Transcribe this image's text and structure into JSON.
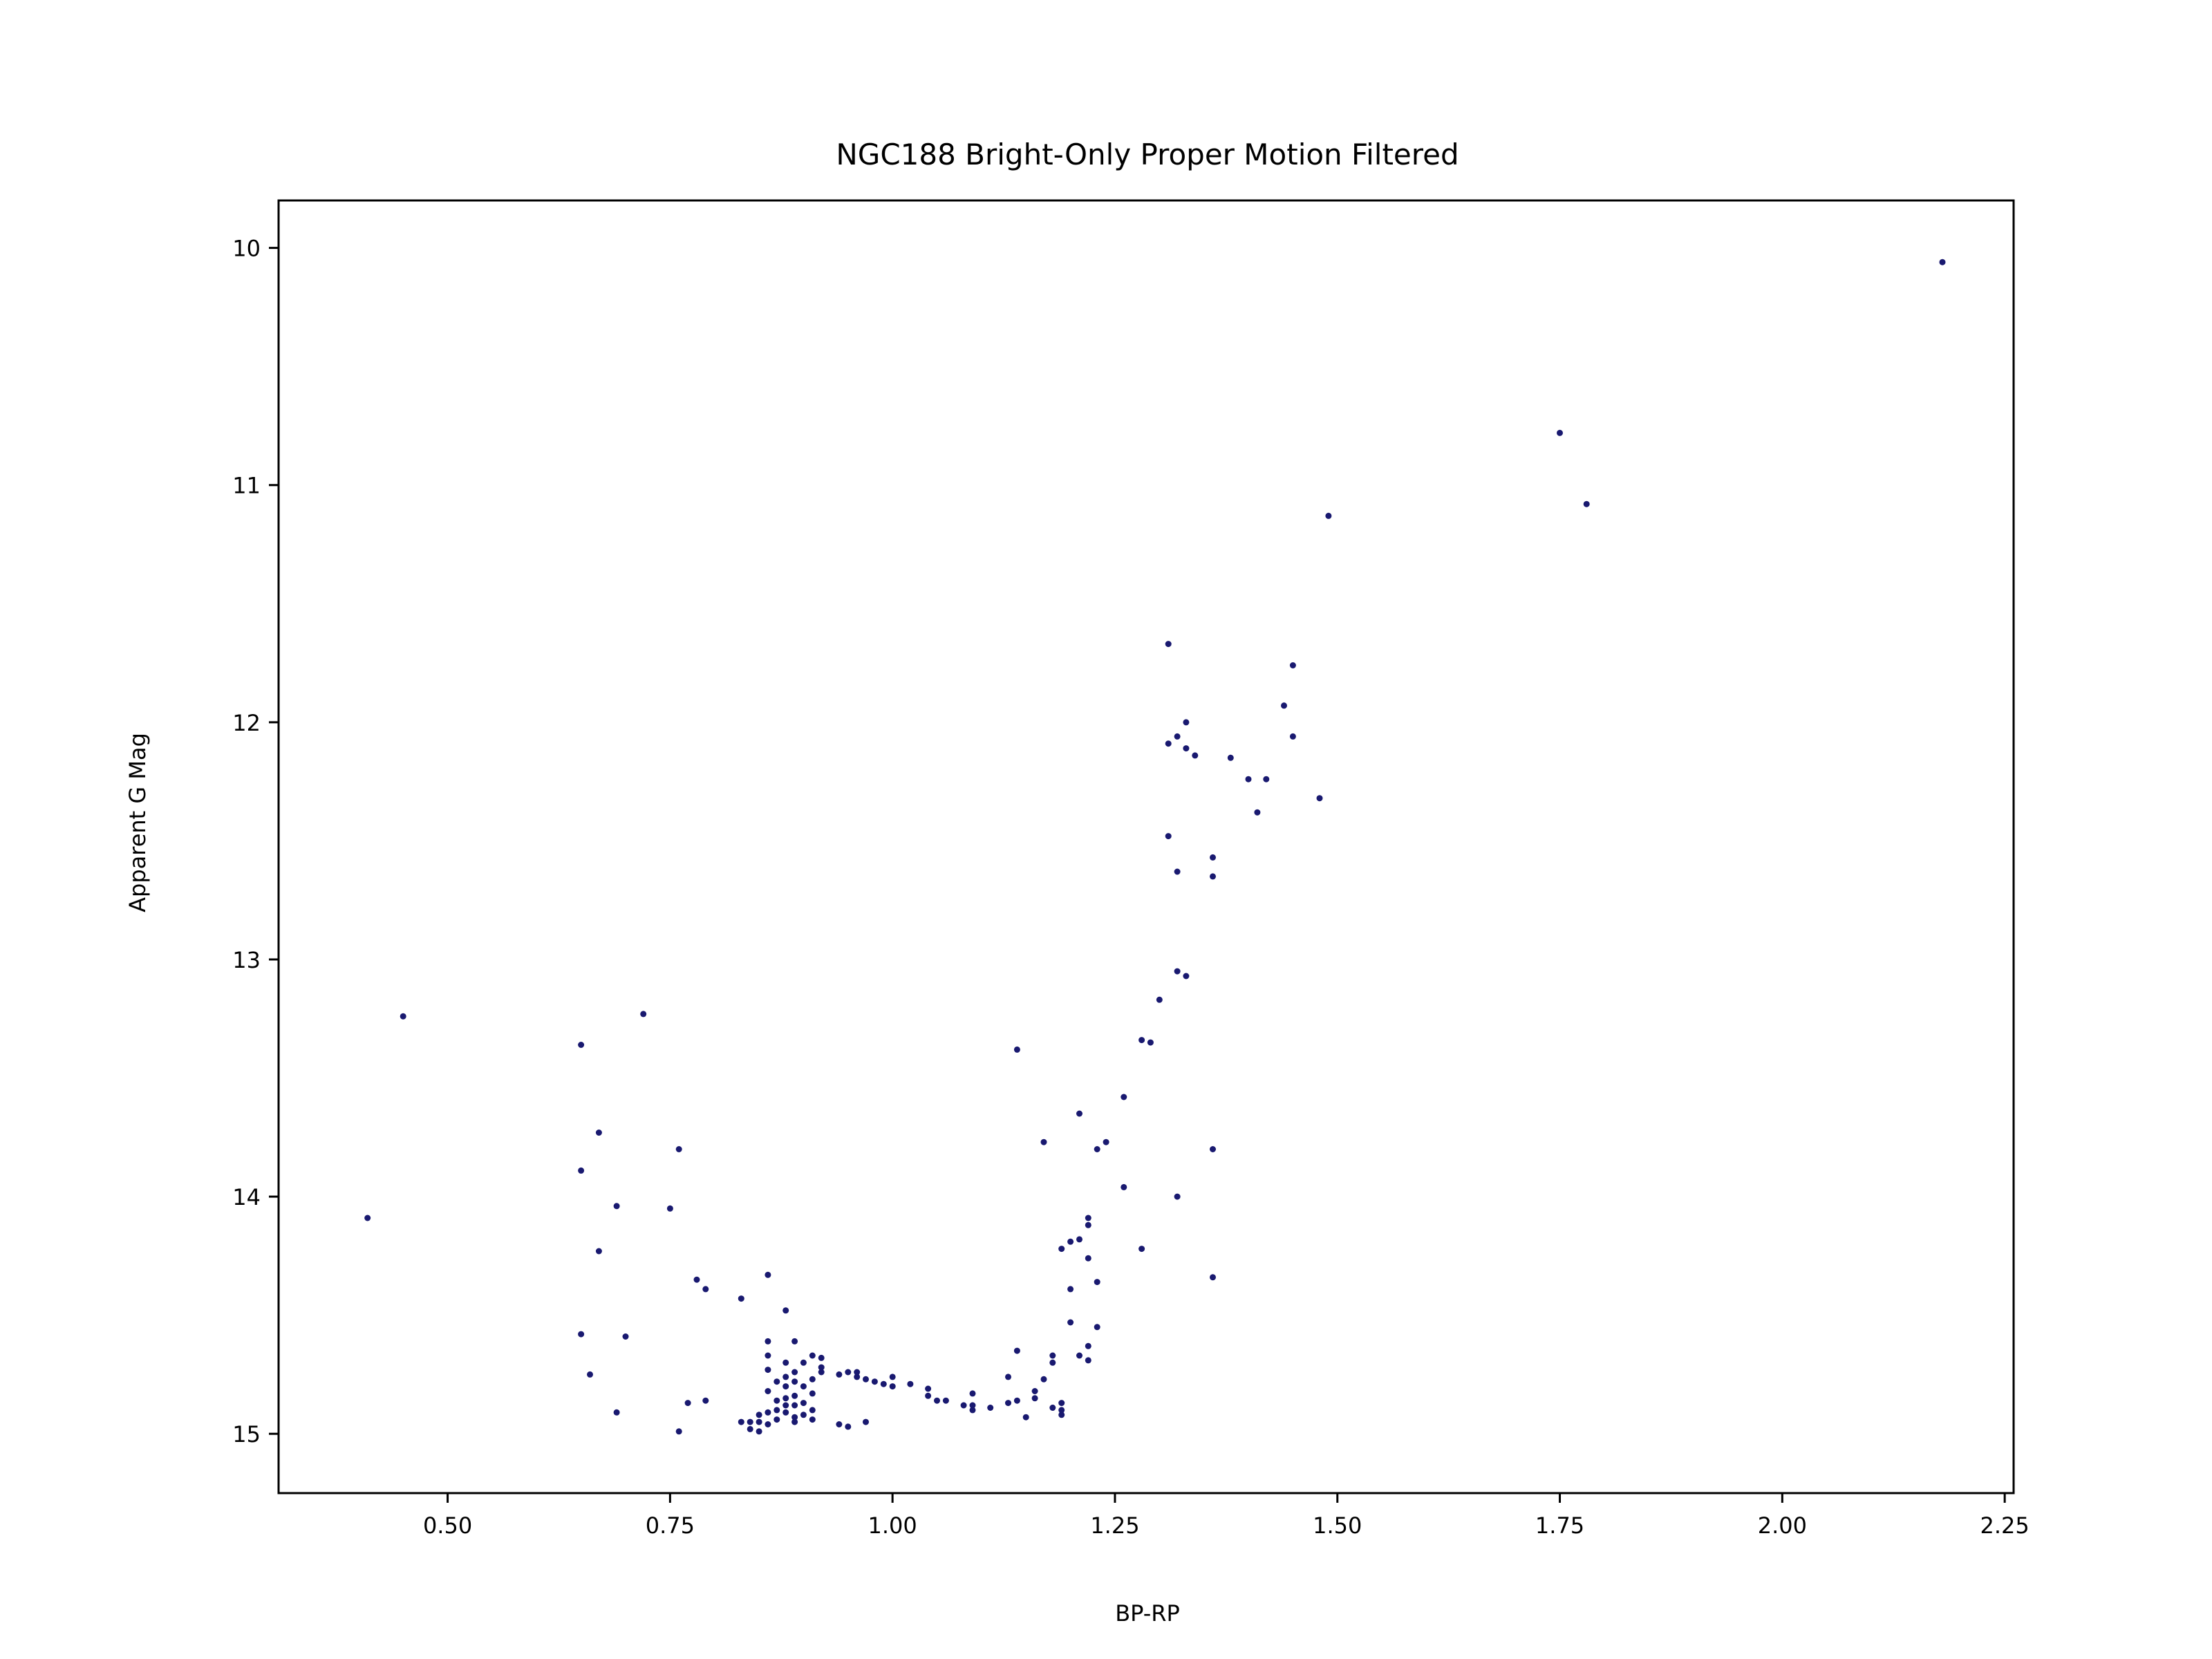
{
  "chart_data": {
    "type": "scatter",
    "title": "NGC188 Bright-Only Proper Motion Filtered",
    "xlabel": "BP-RP",
    "ylabel": "Apparent G Mag",
    "xlim": [
      0.31,
      2.26
    ],
    "ylim": [
      15.25,
      9.8
    ],
    "y_inverted": true,
    "grid": false,
    "marker_color": "#191970",
    "xticks": [
      "0.50",
      "0.75",
      "1.00",
      "1.25",
      "1.50",
      "1.75",
      "2.00",
      "2.25"
    ],
    "yticks": [
      "10",
      "11",
      "12",
      "13",
      "14",
      "15"
    ],
    "points": [
      [
        2.18,
        10.06
      ],
      [
        1.75,
        10.78
      ],
      [
        1.78,
        11.08
      ],
      [
        1.49,
        11.13
      ],
      [
        1.31,
        11.67
      ],
      [
        1.45,
        11.76
      ],
      [
        1.44,
        11.93
      ],
      [
        1.33,
        12.0
      ],
      [
        1.32,
        12.06
      ],
      [
        1.31,
        12.09
      ],
      [
        1.33,
        12.11
      ],
      [
        1.34,
        12.14
      ],
      [
        1.38,
        12.15
      ],
      [
        1.45,
        12.06
      ],
      [
        1.4,
        12.24
      ],
      [
        1.42,
        12.24
      ],
      [
        1.48,
        12.32
      ],
      [
        1.41,
        12.38
      ],
      [
        1.31,
        12.48
      ],
      [
        1.36,
        12.57
      ],
      [
        1.32,
        12.63
      ],
      [
        1.36,
        12.65
      ],
      [
        1.32,
        13.05
      ],
      [
        1.33,
        13.07
      ],
      [
        1.3,
        13.17
      ],
      [
        1.28,
        13.34
      ],
      [
        1.29,
        13.35
      ],
      [
        1.26,
        13.58
      ],
      [
        1.21,
        13.65
      ],
      [
        1.24,
        13.77
      ],
      [
        1.17,
        13.77
      ],
      [
        1.23,
        13.8
      ],
      [
        1.36,
        13.8
      ],
      [
        1.26,
        13.96
      ],
      [
        1.32,
        14.0
      ],
      [
        1.22,
        14.09
      ],
      [
        1.22,
        14.12
      ],
      [
        1.2,
        14.19
      ],
      [
        1.21,
        14.18
      ],
      [
        1.19,
        14.22
      ],
      [
        1.28,
        14.22
      ],
      [
        1.22,
        14.26
      ],
      [
        1.23,
        14.36
      ],
      [
        1.36,
        14.34
      ],
      [
        1.2,
        14.39
      ],
      [
        1.2,
        14.53
      ],
      [
        1.23,
        14.55
      ],
      [
        1.22,
        14.63
      ],
      [
        1.14,
        14.65
      ],
      [
        1.18,
        14.67
      ],
      [
        1.21,
        14.67
      ],
      [
        1.22,
        14.69
      ],
      [
        1.18,
        14.7
      ],
      [
        1.17,
        14.77
      ],
      [
        1.13,
        14.76
      ],
      [
        1.16,
        14.82
      ],
      [
        1.16,
        14.85
      ],
      [
        1.14,
        14.86
      ],
      [
        1.13,
        14.87
      ],
      [
        1.19,
        14.87
      ],
      [
        1.19,
        14.9
      ],
      [
        1.18,
        14.89
      ],
      [
        1.15,
        14.93
      ],
      [
        1.19,
        14.92
      ],
      [
        1.14,
        13.38
      ],
      [
        1.11,
        14.89
      ],
      [
        1.09,
        14.9
      ],
      [
        1.09,
        14.88
      ],
      [
        1.08,
        14.88
      ],
      [
        1.09,
        14.83
      ],
      [
        1.06,
        14.86
      ],
      [
        1.05,
        14.86
      ],
      [
        1.04,
        14.84
      ],
      [
        1.04,
        14.81
      ],
      [
        1.02,
        14.79
      ],
      [
        1.0,
        14.8
      ],
      [
        1.0,
        14.76
      ],
      [
        0.99,
        14.79
      ],
      [
        0.98,
        14.78
      ],
      [
        0.97,
        14.77
      ],
      [
        0.96,
        14.76
      ],
      [
        0.96,
        14.74
      ],
      [
        0.95,
        14.74
      ],
      [
        0.94,
        14.75
      ],
      [
        0.97,
        14.95
      ],
      [
        0.95,
        14.97
      ],
      [
        0.94,
        14.96
      ],
      [
        0.92,
        14.72
      ],
      [
        0.92,
        14.68
      ],
      [
        0.91,
        14.67
      ],
      [
        0.92,
        14.74
      ],
      [
        0.91,
        14.77
      ],
      [
        0.9,
        14.7
      ],
      [
        0.89,
        14.74
      ],
      [
        0.89,
        14.78
      ],
      [
        0.88,
        14.76
      ],
      [
        0.88,
        14.8
      ],
      [
        0.9,
        14.8
      ],
      [
        0.91,
        14.83
      ],
      [
        0.89,
        14.84
      ],
      [
        0.88,
        14.85
      ],
      [
        0.87,
        14.86
      ],
      [
        0.88,
        14.88
      ],
      [
        0.89,
        14.88
      ],
      [
        0.9,
        14.87
      ],
      [
        0.91,
        14.9
      ],
      [
        0.9,
        14.92
      ],
      [
        0.89,
        14.93
      ],
      [
        0.88,
        14.91
      ],
      [
        0.87,
        14.9
      ],
      [
        0.86,
        14.91
      ],
      [
        0.85,
        14.92
      ],
      [
        0.85,
        14.95
      ],
      [
        0.84,
        14.98
      ],
      [
        0.85,
        14.99
      ],
      [
        0.86,
        14.96
      ],
      [
        0.87,
        14.94
      ],
      [
        0.89,
        14.95
      ],
      [
        0.91,
        14.94
      ],
      [
        0.86,
        14.82
      ],
      [
        0.87,
        14.78
      ],
      [
        0.86,
        14.73
      ],
      [
        0.86,
        14.67
      ],
      [
        0.86,
        14.61
      ],
      [
        0.88,
        14.7
      ],
      [
        0.89,
        14.61
      ],
      [
        0.88,
        14.48
      ],
      [
        0.86,
        14.33
      ],
      [
        0.84,
        14.95
      ],
      [
        0.83,
        14.95
      ],
      [
        0.76,
        14.99
      ],
      [
        0.77,
        14.87
      ],
      [
        0.79,
        14.86
      ],
      [
        0.83,
        14.43
      ],
      [
        0.79,
        14.39
      ],
      [
        0.78,
        14.35
      ],
      [
        0.75,
        14.05
      ],
      [
        0.76,
        13.8
      ],
      [
        0.72,
        13.23
      ],
      [
        0.7,
        14.59
      ],
      [
        0.69,
        14.04
      ],
      [
        0.69,
        14.91
      ],
      [
        0.67,
        14.23
      ],
      [
        0.66,
        14.75
      ],
      [
        0.65,
        14.58
      ],
      [
        0.67,
        13.73
      ],
      [
        0.65,
        13.89
      ],
      [
        0.65,
        13.36
      ],
      [
        0.45,
        13.24
      ],
      [
        0.41,
        14.09
      ]
    ]
  }
}
